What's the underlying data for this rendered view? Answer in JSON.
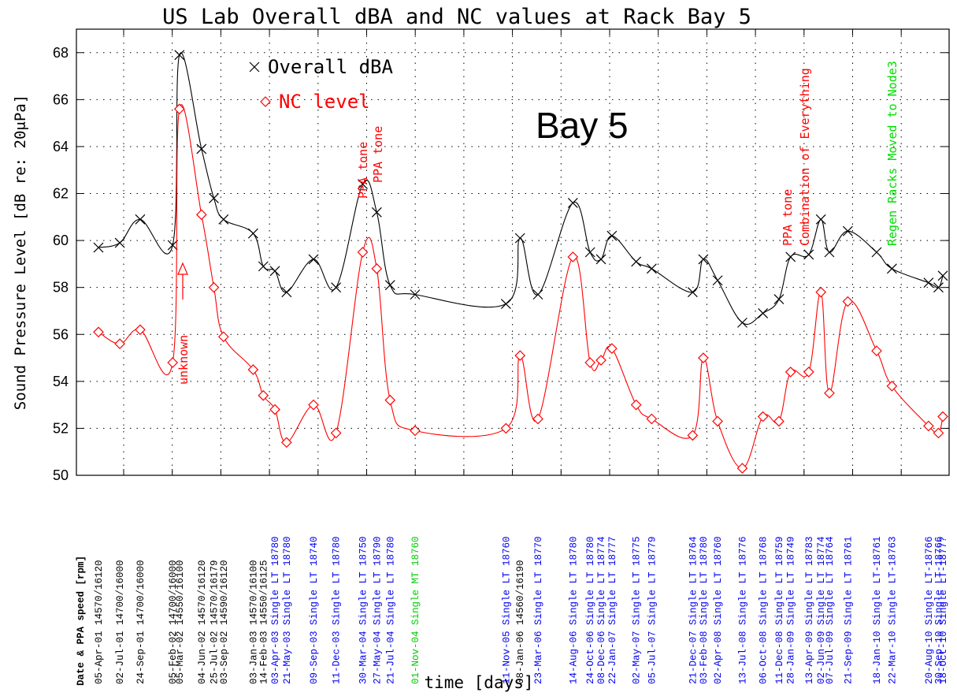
{
  "chart_data": {
    "type": "line",
    "title": "US Lab Overall dBA and NC values at Rack Bay 5",
    "ylabel": "Sound Pressure Level [dB re: 20μPa]",
    "xlabel": "time [days]",
    "x_header": "Date & PPA speed [rpm]",
    "box_label": "Bay 5",
    "grid": true,
    "ylim": [
      50,
      69
    ],
    "yticks": [
      50,
      52,
      54,
      56,
      58,
      60,
      62,
      64,
      66,
      68
    ],
    "x": [
      "05-Apr-01",
      "02-Jul-01",
      "24-Sep-01",
      "05-Feb-02",
      "05-Mar-02",
      "04-Jun-02",
      "25-Jul-02",
      "03-Sep-02",
      "03-Jan-03",
      "14-Feb-03",
      "03-Apr-03",
      "21-May-03",
      "09-Sep-03",
      "11-Dec-03",
      "30-Mar-04",
      "27-May-04",
      "21-Jul-04",
      "01-Nov-04",
      "11-Nov-05",
      "08-Jan-06",
      "23-Mar-06",
      "14-Aug-06",
      "24-Oct-06",
      "08-Dec-06",
      "22-Jan-07",
      "02-May-07",
      "05-Jul-07",
      "21-Dec-07",
      "03-Feb-08",
      "02-Apr-08",
      "13-Jul-08",
      "06-Oct-08",
      "11-Dec-08",
      "28-Jan-09",
      "13-Apr-09",
      "02-Jun-09",
      "07-Jul-09",
      "21-Sep-09",
      "18-Jan-10",
      "22-Mar-10",
      "20-Aug-10",
      "30-Sep-10",
      "18-Oct-10"
    ],
    "x_notes": [
      "14570/16120",
      "14700/16000",
      "14700/16000",
      "14700/16000",
      "14550/16100",
      "14570/16120",
      "14570/16179",
      "14590/16120",
      "14570/16100",
      "14550/16125",
      "Single LT 18780",
      "Single LT 18780",
      "Single LT 18740",
      "Single LT 18780",
      "Single LT 18750",
      "Single LT 18790",
      "Single LT 18780",
      "Single MT 18760",
      "Single LT 18760",
      "14560/16190",
      "Single LT 18770",
      "Single LT 18780",
      "Single LT 18780",
      "Single LT 18774",
      "Single LT 18777",
      "Single LT 18775",
      "Single LT 18779",
      "Single LT 18764",
      "Single LT 18780",
      "Single LT 18760",
      "Single LT 18776",
      "Single LT 18768",
      "Single LT 18759",
      "Single LT 18749",
      "Single LT 18783",
      "Single LT 18774",
      "Single LT 18764",
      "Single LT 18761",
      "Single LT-18761",
      "Single LT-18763",
      "Single LT-18766",
      "Single LT-18766",
      "Single LT-1877?"
    ],
    "x_label_colors": [
      "#000",
      "#000",
      "#000",
      "#000",
      "#000",
      "#000",
      "#000",
      "#000",
      "#000",
      "#000",
      "#0000ee",
      "#0000ee",
      "#0000ee",
      "#0000ee",
      "#0000ee",
      "#0000ee",
      "#0000ee",
      "#00cc00",
      "#0000ee",
      "#000",
      "#0000ee",
      "#0000ee",
      "#0000ee",
      "#0000ee",
      "#0000ee",
      "#0000ee",
      "#0000ee",
      "#0000ee",
      "#0000ee",
      "#0000ee",
      "#0000ee",
      "#0000ee",
      "#0000ee",
      "#0000ee",
      "#0000ee",
      "#0000ee",
      "#0000ee",
      "#0000ee",
      "#0000ee",
      "#0000ee",
      "#0000ee",
      "#0000ee",
      "#0000ee"
    ],
    "series": [
      {
        "name": "Overall dBA",
        "color": "#000000",
        "marker": "x",
        "values": [
          59.7,
          59.9,
          60.9,
          59.8,
          67.9,
          63.9,
          61.8,
          60.9,
          60.3,
          58.9,
          58.7,
          57.8,
          59.2,
          58.0,
          62.4,
          61.2,
          58.1,
          57.7,
          57.3,
          60.1,
          57.7,
          61.6,
          59.5,
          59.2,
          60.2,
          59.1,
          58.8,
          57.8,
          59.2,
          58.3,
          56.5,
          56.9,
          57.5,
          59.3,
          59.4,
          60.9,
          59.5,
          60.4,
          59.5,
          58.8,
          58.2,
          58.0,
          58.5
        ]
      },
      {
        "name": "NC level",
        "color": "#ff0000",
        "marker": "diamond",
        "values": [
          56.1,
          55.6,
          56.2,
          54.8,
          65.6,
          61.1,
          58.0,
          55.9,
          54.5,
          53.4,
          52.8,
          51.4,
          53.0,
          51.8,
          59.5,
          58.8,
          53.2,
          51.9,
          52.0,
          55.1,
          52.4,
          59.3,
          54.8,
          54.9,
          55.4,
          53.0,
          52.4,
          51.7,
          55.0,
          52.3,
          50.3,
          52.5,
          52.3,
          54.4,
          54.4,
          57.8,
          53.5,
          57.4,
          55.3,
          53.8,
          52.1,
          51.8,
          52.5
        ]
      }
    ],
    "annotations": [
      {
        "text": "unknown",
        "color": "#ff0000"
      },
      {
        "text": "PPA tone",
        "color": "#ff0000"
      },
      {
        "text": "PPA tone",
        "color": "#ff0000"
      },
      {
        "text": "PPA tone",
        "color": "#ff0000"
      },
      {
        "text": "Combination of Everything",
        "color": "#ff0000"
      },
      {
        "text": "Regen Racks Moved to Node3",
        "color": "#00dd00"
      }
    ]
  }
}
